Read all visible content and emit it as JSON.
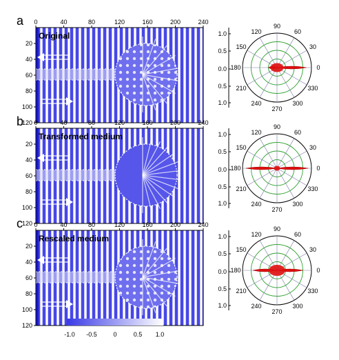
{
  "figure": {
    "panels": [
      {
        "letter": "a",
        "label": "Original",
        "circle_style": "interference",
        "polar": {
          "main_lobe": 0.85,
          "back_lobe": 0.25,
          "sidelobe": 0.15
        }
      },
      {
        "letter": "b",
        "label": "Transformed medium",
        "circle_style": "clean",
        "polar": {
          "main_lobe": 0.9,
          "back_lobe": 0.9,
          "sidelobe": 0.05
        }
      },
      {
        "letter": "c",
        "label": "Rescaled medium",
        "circle_style": "mixed",
        "polar": {
          "main_lobe": 0.75,
          "back_lobe": 0.7,
          "sidelobe": 0.2
        }
      }
    ],
    "field_axes": {
      "x_ticks": [
        "0",
        "40",
        "80",
        "120",
        "160",
        "200",
        "240"
      ],
      "y_ticks": [
        "20",
        "40",
        "60",
        "80",
        "100",
        "120"
      ]
    },
    "polar_axes": {
      "angle_labels": [
        "90",
        "60",
        "30",
        "0",
        "330",
        "300",
        "270",
        "240",
        "210",
        "180",
        "150",
        "120"
      ],
      "radial_ticks_top": [
        "1.0",
        "0.5",
        "0.0"
      ],
      "radial_ticks_bottom": [
        "0.5",
        "1.0"
      ]
    },
    "colorbar": {
      "ticks": [
        "-1.0",
        "-0.5",
        "0",
        "0.5",
        "1.0"
      ],
      "colors": {
        "low": "#3a3ae6",
        "high": "#ffffff"
      }
    },
    "colors": {
      "field_low": "#3a3ae6",
      "field_high": "#ffffff",
      "polar_circle": "#2ca02c",
      "polar_spoke": "#7a7aa8",
      "lobe_fill": "#e01010"
    }
  }
}
